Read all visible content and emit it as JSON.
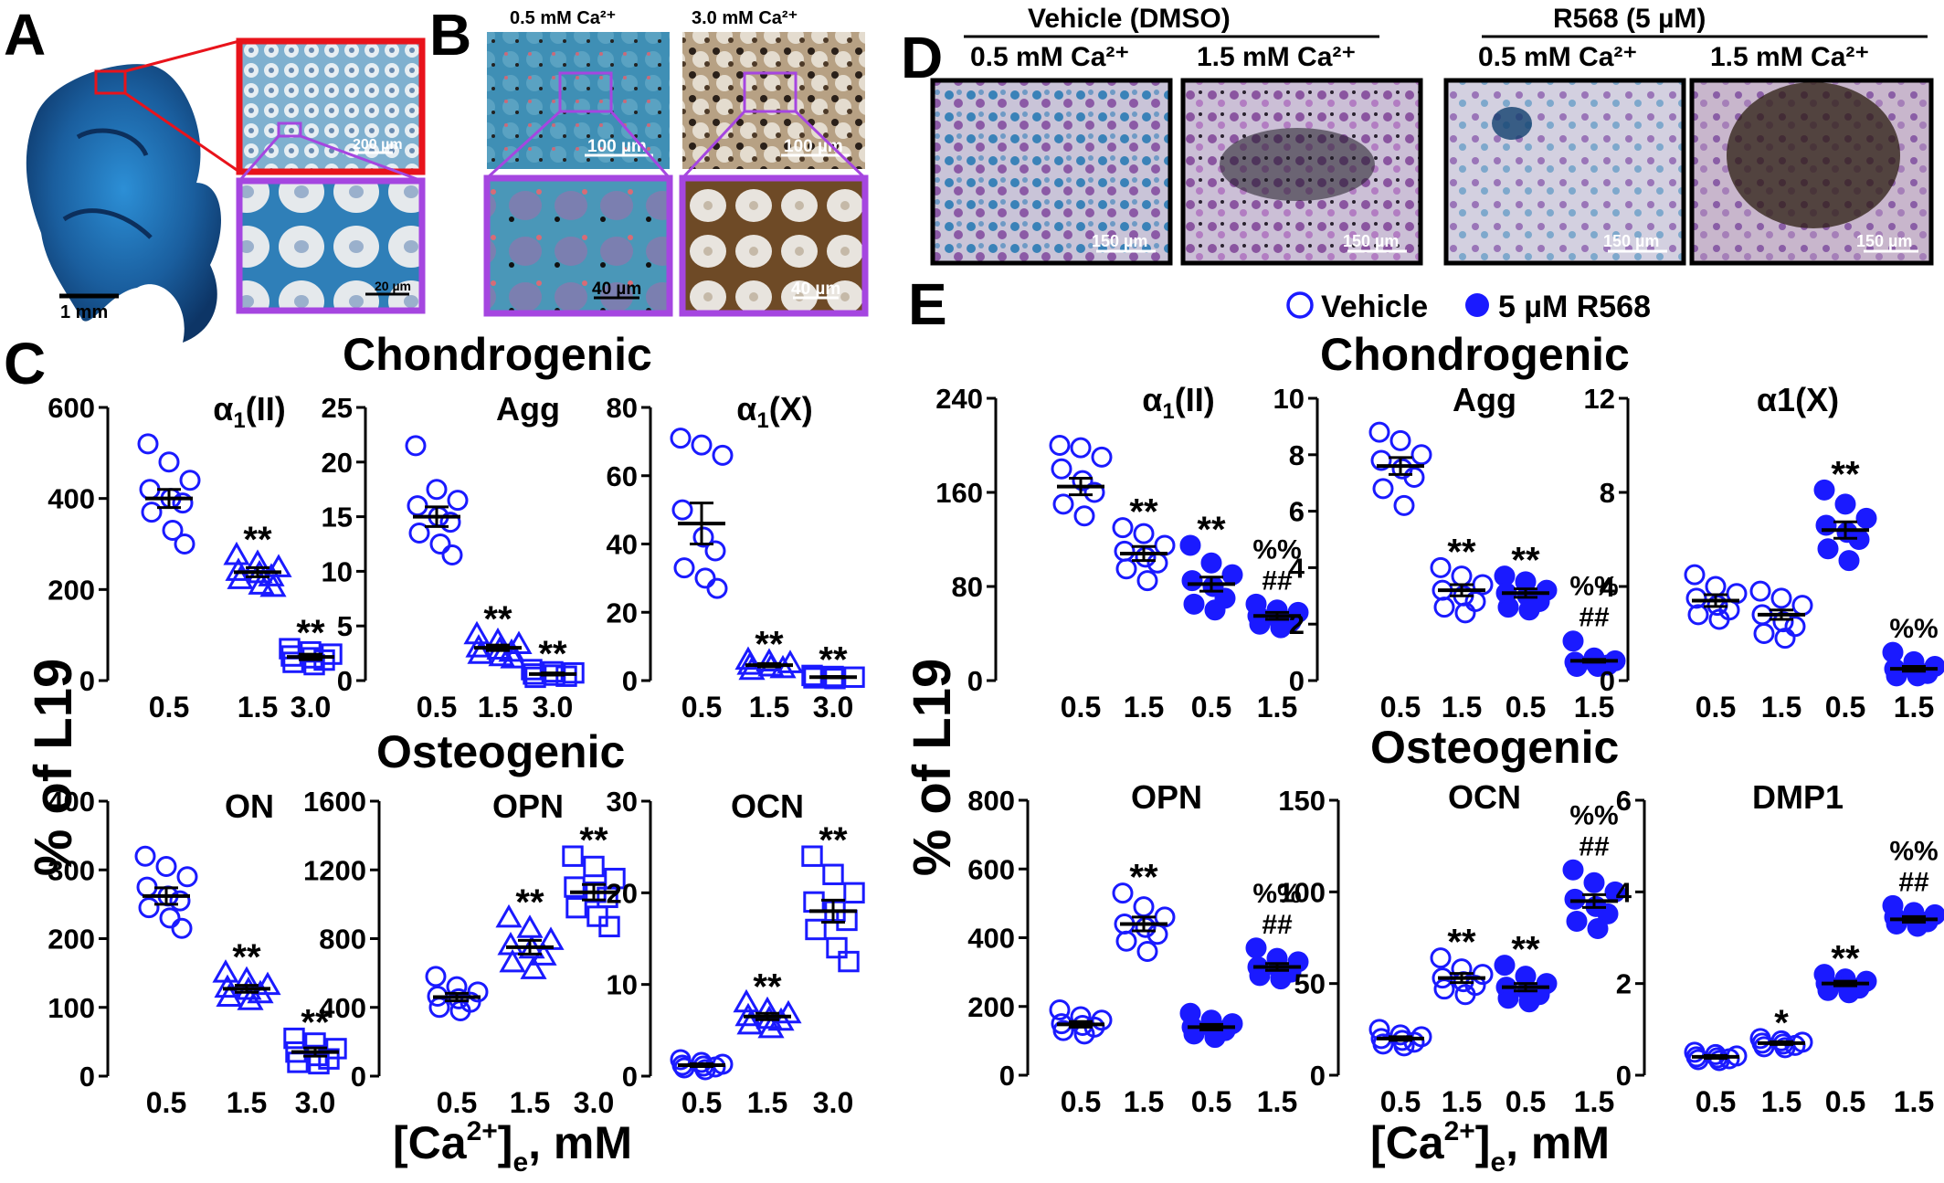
{
  "colors": {
    "marker": "#1a1aff",
    "error_bar": "#000000",
    "frame_red": "#e8131b",
    "frame_purple": "#a546e0",
    "alcian_blue": "#1e6fb5",
    "tissue_bg": "#5f8fb9"
  },
  "panels": {
    "A": {
      "letter": "A",
      "scale_main": "1 mm",
      "scale_inset_top": "200 µm",
      "scale_inset_bottom": "20 µm"
    },
    "B": {
      "letter": "B",
      "conditions": [
        "0.5 mM Ca²⁺",
        "3.0 mM Ca²⁺"
      ],
      "scale_top": [
        "100 µm",
        "100 µm"
      ],
      "scale_bottom": [
        "40 µm",
        "40 µm"
      ]
    },
    "C": {
      "letter": "C",
      "chondro_title": "Chondrogenic",
      "osteo_title": "Osteogenic",
      "y_label": "% of L19",
      "x_label_main": "[Ca",
      "x_label_sup": "2+",
      "x_label_close": "]",
      "x_label_sub": "e",
      "x_label_unit": ", mM"
    },
    "D": {
      "letter": "D",
      "groups": [
        "Vehicle (DMSO)",
        "R568 (5 µM)"
      ],
      "conditions": [
        "0.5 mM Ca²⁺",
        "1.5 mM Ca²⁺",
        "0.5 mM Ca²⁺",
        "1.5 mM Ca²⁺"
      ],
      "scale": "150 µm"
    },
    "E": {
      "letter": "E",
      "legend_vehicle": "Vehicle",
      "legend_r568": "5 µM R568",
      "chondro_title": "Chondrogenic",
      "osteo_title": "Osteogenic",
      "y_label": "% of L19",
      "x_label_main": "[Ca",
      "x_label_sup": "2+",
      "x_label_close": "]",
      "x_label_sub": "e",
      "x_label_unit": ", mM"
    }
  },
  "chart_data": [
    {
      "id": "C_a1II",
      "type": "scatter",
      "panel": "C",
      "title": "α1(II)",
      "categories": [
        "0.5",
        "1.5",
        "3.0"
      ],
      "markers": [
        "circle",
        "triangle",
        "square"
      ],
      "ylim": [
        0,
        600
      ],
      "yticks": [
        0,
        200,
        400,
        600
      ],
      "means": [
        400,
        238,
        52
      ],
      "sems": [
        20,
        10,
        6
      ],
      "points": [
        [
          520,
          480,
          440,
          420,
          400,
          390,
          370,
          330,
          300
        ],
        [
          275,
          258,
          248,
          240,
          235,
          228,
          222,
          210,
          205
        ],
        [
          70,
          63,
          58,
          54,
          50,
          45,
          40,
          35
        ]
      ],
      "significance": [
        "",
        "**",
        "**"
      ]
    },
    {
      "id": "C_Agg",
      "type": "scatter",
      "panel": "C",
      "title": "Agg",
      "categories": [
        "0.5",
        "1.5",
        "3.0"
      ],
      "markers": [
        "circle",
        "triangle",
        "square"
      ],
      "ylim": [
        0,
        25
      ],
      "yticks": [
        0,
        5,
        10,
        15,
        20,
        25
      ],
      "means": [
        15,
        3,
        0.6
      ],
      "sems": [
        0.9,
        0.25,
        0.1
      ],
      "points": [
        [
          21.5,
          17.5,
          16.5,
          16,
          15,
          14.5,
          13.5,
          12.5,
          11.5
        ],
        [
          4.2,
          3.6,
          3.3,
          3,
          2.8,
          2.6,
          2.4,
          2.2,
          2
        ],
        [
          1,
          0.8,
          0.7,
          0.6,
          0.5,
          0.4,
          0.3
        ]
      ],
      "significance": [
        "",
        "**",
        "**"
      ]
    },
    {
      "id": "C_a1X",
      "type": "scatter",
      "panel": "C",
      "title": "α1(X)",
      "categories": [
        "0.5",
        "1.5",
        "3.0"
      ],
      "markers": [
        "circle",
        "triangle",
        "square"
      ],
      "ylim": [
        0,
        80
      ],
      "yticks": [
        0,
        20,
        40,
        60,
        80
      ],
      "means": [
        46,
        4.5,
        1
      ],
      "sems": [
        6,
        0.5,
        0.2
      ],
      "points": [
        [
          71,
          69,
          66,
          50,
          42,
          38,
          33,
          30,
          27
        ],
        [
          6,
          5.5,
          5,
          4.5,
          4,
          3.5,
          3
        ],
        [
          1.5,
          1.2,
          1,
          0.8,
          0.6
        ]
      ],
      "significance": [
        "",
        "**",
        "**"
      ]
    },
    {
      "id": "C_ON",
      "type": "scatter",
      "panel": "C",
      "title": "ON",
      "categories": [
        "0.5",
        "1.5",
        "3.0"
      ],
      "markers": [
        "circle",
        "triangle",
        "square"
      ],
      "ylim": [
        0,
        400
      ],
      "yticks": [
        0,
        100,
        200,
        300,
        400
      ],
      "means": [
        262,
        127,
        35
      ],
      "sems": [
        12,
        5,
        6
      ],
      "points": [
        [
          320,
          305,
          290,
          275,
          262,
          255,
          245,
          230,
          215
        ],
        [
          150,
          140,
          132,
          128,
          125,
          120,
          115,
          110
        ],
        [
          55,
          48,
          40,
          35,
          30,
          25,
          20,
          18
        ]
      ],
      "significance": [
        "",
        "**",
        "**"
      ]
    },
    {
      "id": "C_OPN",
      "type": "scatter",
      "panel": "C",
      "title": "OPN",
      "categories": [
        "0.5",
        "1.5",
        "3.0"
      ],
      "markers": [
        "circle",
        "triangle",
        "square"
      ],
      "ylim": [
        0,
        1600
      ],
      "yticks": [
        400,
        800,
        1200,
        1600
      ],
      "tick_labels": [
        "400",
        "800",
        "1200",
        "1600"
      ],
      "means": [
        460,
        750,
        1070
      ],
      "sems": [
        22,
        40,
        45
      ],
      "points": [
        [
          580,
          520,
          490,
          465,
          450,
          430,
          400,
          380
        ],
        [
          920,
          860,
          790,
          760,
          740,
          700,
          660,
          620
        ],
        [
          1280,
          1220,
          1150,
          1100,
          1070,
          1040,
          980,
          930,
          870
        ]
      ],
      "significance": [
        "",
        "**",
        "**"
      ]
    },
    {
      "id": "C_OCN",
      "type": "scatter",
      "panel": "C",
      "title": "OCN",
      "categories": [
        "0.5",
        "1.5",
        "3.0"
      ],
      "markers": [
        "circle",
        "triangle",
        "square"
      ],
      "ylim": [
        0,
        30
      ],
      "yticks": [
        0,
        10,
        20,
        30
      ],
      "means": [
        1.2,
        6.5,
        18
      ],
      "sems": [
        0.15,
        0.35,
        1.2
      ],
      "points": [
        [
          1.8,
          1.5,
          1.3,
          1.2,
          1.1,
          1.0,
          0.9,
          0.7
        ],
        [
          8,
          7.2,
          6.8,
          6.5,
          6.2,
          6,
          5.6,
          5.2
        ],
        [
          24,
          22,
          20,
          19,
          18,
          17,
          16,
          14,
          12.5
        ]
      ],
      "significance": [
        "",
        "**",
        "**"
      ]
    },
    {
      "id": "E_a1II",
      "type": "scatter",
      "panel": "E",
      "title": "α1(II)",
      "categories": [
        "0.5",
        "1.5",
        "0.5",
        "1.5"
      ],
      "filled": [
        false,
        false,
        true,
        true
      ],
      "ylim": [
        0,
        240
      ],
      "yticks": [
        0,
        80,
        160,
        240
      ],
      "means": [
        165,
        108,
        82,
        55
      ],
      "sems": [
        7,
        6,
        6,
        3
      ],
      "points": [
        [
          200,
          198,
          190,
          180,
          170,
          160,
          150,
          140
        ],
        [
          130,
          125,
          115,
          110,
          105,
          100,
          95,
          85
        ],
        [
          115,
          100,
          90,
          85,
          80,
          70,
          65,
          60
        ],
        [
          65,
          60,
          58,
          55,
          52,
          50,
          48,
          45
        ]
      ],
      "significance": [
        "",
        "**",
        "**",
        "%%\n##"
      ]
    },
    {
      "id": "E_Agg",
      "type": "scatter",
      "panel": "E",
      "title": "Agg",
      "categories": [
        "0.5",
        "1.5",
        "0.5",
        "1.5"
      ],
      "filled": [
        false,
        false,
        true,
        true
      ],
      "ylim": [
        0,
        10
      ],
      "yticks": [
        0,
        2,
        4,
        6,
        8,
        10
      ],
      "means": [
        7.6,
        3.2,
        3.1,
        0.7
      ],
      "sems": [
        0.3,
        0.2,
        0.15,
        0.05
      ],
      "points": [
        [
          8.8,
          8.5,
          8,
          7.8,
          7.5,
          7.2,
          6.8,
          6.2
        ],
        [
          4,
          3.7,
          3.4,
          3.2,
          3,
          2.8,
          2.6,
          2.4
        ],
        [
          3.7,
          3.5,
          3.2,
          3.1,
          3,
          2.8,
          2.6,
          2.5
        ],
        [
          1.4,
          0.8,
          0.7,
          0.65,
          0.6,
          0.55,
          0.5,
          0.5
        ]
      ],
      "significance": [
        "",
        "**",
        "**",
        "%%\n##"
      ]
    },
    {
      "id": "E_a1X",
      "type": "scatter",
      "panel": "E",
      "title": "α1(X)",
      "categories": [
        "0.5",
        "1.5",
        "0.5",
        "1.5"
      ],
      "filled": [
        false,
        false,
        true,
        true
      ],
      "ylim": [
        0,
        12
      ],
      "yticks": [
        0,
        4,
        8,
        12
      ],
      "means": [
        3.4,
        2.8,
        6.4,
        0.5
      ],
      "sems": [
        0.25,
        0.2,
        0.35,
        0.1
      ],
      "points": [
        [
          4.5,
          4,
          3.7,
          3.5,
          3.2,
          3,
          2.8,
          2.6
        ],
        [
          3.8,
          3.5,
          3.2,
          2.8,
          2.5,
          2.3,
          2,
          1.8
        ],
        [
          8.1,
          7.5,
          6.9,
          6.6,
          6.3,
          6,
          5.6,
          5.1
        ],
        [
          1.2,
          0.8,
          0.6,
          0.5,
          0.4,
          0.3,
          0.2,
          0.2
        ]
      ],
      "significance": [
        "",
        "",
        "**",
        "%%"
      ]
    },
    {
      "id": "E_OPN",
      "type": "scatter",
      "panel": "E",
      "title": "OPN",
      "categories": [
        "0.5",
        "1.5",
        "0.5",
        "1.5"
      ],
      "filled": [
        false,
        false,
        true,
        true
      ],
      "ylim": [
        0,
        800
      ],
      "yticks": [
        0,
        200,
        400,
        600,
        800
      ],
      "means": [
        148,
        440,
        140,
        315
      ],
      "sems": [
        8,
        20,
        8,
        10
      ],
      "points": [
        [
          190,
          170,
          160,
          150,
          145,
          140,
          130,
          120
        ],
        [
          530,
          490,
          460,
          440,
          430,
          410,
          390,
          360
        ],
        [
          180,
          160,
          150,
          140,
          135,
          130,
          120,
          110
        ],
        [
          370,
          340,
          330,
          315,
          310,
          300,
          290,
          280
        ]
      ],
      "significance": [
        "",
        "**",
        "",
        "%%\n##"
      ]
    },
    {
      "id": "E_OCN",
      "type": "scatter",
      "panel": "E",
      "title": "OCN",
      "categories": [
        "0.5",
        "1.5",
        "0.5",
        "1.5"
      ],
      "filled": [
        false,
        false,
        true,
        true
      ],
      "ylim": [
        0,
        150
      ],
      "yticks": [
        0,
        50,
        100,
        150
      ],
      "means": [
        20,
        53,
        48,
        95
      ],
      "sems": [
        1,
        2.5,
        2,
        3.5
      ],
      "points": [
        [
          25,
          22,
          21,
          20,
          19,
          18,
          17,
          16
        ],
        [
          64,
          58,
          55,
          53,
          51,
          49,
          47,
          44
        ],
        [
          60,
          54,
          50,
          48,
          46,
          44,
          42,
          40
        ],
        [
          112,
          105,
          100,
          96,
          92,
          88,
          84,
          80
        ]
      ],
      "significance": [
        "",
        "**",
        "**",
        "%%\n##"
      ]
    },
    {
      "id": "E_DMP1",
      "type": "scatter",
      "panel": "E",
      "title": "DMP1",
      "categories": [
        "0.5",
        "1.5",
        "0.5",
        "1.5"
      ],
      "filled": [
        false,
        false,
        true,
        true
      ],
      "ylim": [
        0,
        6
      ],
      "yticks": [
        0,
        2,
        4,
        6
      ],
      "means": [
        0.4,
        0.7,
        2,
        3.4
      ],
      "sems": [
        0.03,
        0.03,
        0.05,
        0.06
      ],
      "points": [
        [
          0.5,
          0.45,
          0.42,
          0.4,
          0.38,
          0.36,
          0.34,
          0.32
        ],
        [
          0.8,
          0.75,
          0.72,
          0.7,
          0.68,
          0.65,
          0.62,
          0.6
        ],
        [
          2.2,
          2.1,
          2.05,
          2,
          1.95,
          1.9,
          1.85,
          1.8
        ],
        [
          3.7,
          3.55,
          3.5,
          3.45,
          3.4,
          3.35,
          3.3,
          3.25
        ]
      ],
      "significance": [
        "",
        "*",
        "**",
        "%%\n##"
      ]
    }
  ]
}
